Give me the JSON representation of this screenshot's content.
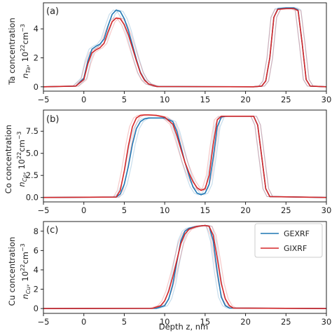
{
  "colors": {
    "GEXRF": "#1f77b4",
    "GIXRF": "#d62728"
  },
  "legend": {
    "placement": "top-right of panel (c)",
    "entries": [
      "GEXRF",
      "GIXRF"
    ]
  },
  "xlabel": "Depth  z, nm",
  "chart_data": [
    {
      "type": "line",
      "panel_label": "(a)",
      "ylabel_line1": "Ta concentration",
      "ylabel_line2": "n_Ta, 10^22 cm^-3",
      "xlim": [
        -5,
        30
      ],
      "ylim": [
        -0.3,
        5.8
      ],
      "xticks": [
        -5,
        0,
        5,
        10,
        15,
        20,
        25,
        30
      ],
      "yticks": [
        0,
        2,
        4
      ],
      "grid": false,
      "series": [
        {
          "name": "GEXRF",
          "x": [
            -5,
            -1,
            0,
            0.5,
            1,
            1.5,
            2,
            2.5,
            3,
            3.5,
            4,
            4.5,
            5,
            5.5,
            6,
            6.5,
            7,
            7.5,
            8,
            9,
            21,
            22,
            22.5,
            23,
            23.5,
            24,
            25,
            26,
            26.5,
            27,
            27.5,
            28,
            30
          ],
          "y": [
            0,
            0.05,
            0.6,
            1.8,
            2.6,
            2.8,
            2.95,
            3.3,
            4.2,
            5.0,
            5.3,
            5.2,
            4.7,
            3.9,
            2.9,
            1.9,
            1.0,
            0.5,
            0.2,
            0.02,
            0,
            0.05,
            0.4,
            2.0,
            4.8,
            5.4,
            5.45,
            5.45,
            5.3,
            3.0,
            0.5,
            0.05,
            0
          ]
        },
        {
          "name": "GIXRF",
          "x": [
            -5,
            -1,
            0,
            0.5,
            1,
            1.5,
            2,
            2.5,
            3,
            3.5,
            4,
            4.5,
            5,
            5.5,
            6,
            6.5,
            7,
            7.5,
            8,
            9,
            21,
            22,
            22.5,
            23,
            23.5,
            24,
            25,
            26,
            26.5,
            27,
            27.5,
            28,
            30
          ],
          "y": [
            0,
            0.05,
            0.5,
            1.6,
            2.35,
            2.55,
            2.7,
            3.0,
            3.8,
            4.5,
            4.75,
            4.7,
            4.3,
            3.6,
            2.7,
            1.8,
            0.95,
            0.45,
            0.2,
            0.02,
            0,
            0.05,
            0.4,
            2.0,
            4.8,
            5.35,
            5.4,
            5.4,
            5.25,
            3.0,
            0.5,
            0.05,
            0
          ]
        }
      ]
    },
    {
      "type": "line",
      "panel_label": "(b)",
      "ylabel_line1": "Co concentration",
      "ylabel_line2": "n_Co, 10^22 cm^-3",
      "xlim": [
        -5,
        30
      ],
      "ylim": [
        -0.5,
        9.9
      ],
      "xticks": [
        -5,
        0,
        5,
        10,
        15,
        20,
        25,
        30
      ],
      "yticks": [
        0.0,
        2.5,
        5.0,
        7.5
      ],
      "grid": false,
      "series": [
        {
          "name": "GEXRF",
          "x": [
            -5,
            4,
            4.5,
            5,
            5.5,
            6,
            6.5,
            7,
            7.5,
            8,
            9,
            10,
            11,
            11.5,
            12,
            12.5,
            13,
            13.5,
            14,
            14.5,
            15,
            15.5,
            16,
            16.5,
            17,
            17.5,
            18,
            20,
            21,
            21.5,
            22,
            22.5,
            23,
            30
          ],
          "y": [
            0,
            0.05,
            0.4,
            1.5,
            3.5,
            6.0,
            7.8,
            8.6,
            8.9,
            9.0,
            9.0,
            9.0,
            8.6,
            7.5,
            5.8,
            4.0,
            2.5,
            1.2,
            0.5,
            0.3,
            0.5,
            1.5,
            4.5,
            8.0,
            9.1,
            9.2,
            9.2,
            9.2,
            9.2,
            8.2,
            4.6,
            1.0,
            0.1,
            0
          ]
        },
        {
          "name": "GIXRF",
          "x": [
            -5,
            4,
            4.5,
            5,
            5.5,
            6,
            6.5,
            7,
            7.5,
            8,
            9,
            10,
            11,
            11.5,
            12,
            12.5,
            13,
            13.5,
            14,
            14.5,
            15,
            15.5,
            16,
            16.5,
            17,
            17.5,
            18,
            20,
            21,
            21.5,
            22,
            22.5,
            23,
            30
          ],
          "y": [
            0,
            0.05,
            0.8,
            3.0,
            5.8,
            8.0,
            9.0,
            9.3,
            9.35,
            9.35,
            9.3,
            9.1,
            8.3,
            7.0,
            5.5,
            4.0,
            2.8,
            1.8,
            1.1,
            0.8,
            1.0,
            2.5,
            6.0,
            8.8,
            9.2,
            9.2,
            9.2,
            9.2,
            9.2,
            8.2,
            4.6,
            1.0,
            0.1,
            0
          ]
        }
      ]
    },
    {
      "type": "line",
      "panel_label": "(c)",
      "ylabel_line1": "Cu concentration",
      "ylabel_line2": "n_Cu, 10^22 cm^-3",
      "xlim": [
        -5,
        30
      ],
      "ylim": [
        -0.5,
        9.0
      ],
      "xticks": [
        -5,
        0,
        5,
        10,
        15,
        20,
        25,
        30
      ],
      "yticks": [
        0,
        2,
        4,
        6,
        8
      ],
      "grid": false,
      "series": [
        {
          "name": "GEXRF",
          "x": [
            -5,
            9,
            10,
            10.5,
            11,
            11.5,
            12,
            12.5,
            13,
            14,
            15,
            15.5,
            16,
            16.5,
            17,
            17.5,
            18,
            30
          ],
          "y": [
            0,
            0.02,
            0.3,
            1.0,
            2.5,
            4.8,
            7.0,
            8.0,
            8.3,
            8.5,
            8.6,
            8.5,
            7.0,
            3.8,
            1.2,
            0.3,
            0.05,
            0
          ]
        },
        {
          "name": "GIXRF",
          "x": [
            -5,
            8.5,
            9.5,
            10,
            10.5,
            11,
            11.5,
            12,
            12.5,
            13,
            14,
            15,
            15.5,
            16,
            16.5,
            17,
            17.5,
            18,
            18.5,
            30
          ],
          "y": [
            0,
            0.02,
            0.3,
            0.8,
            1.8,
            3.3,
            5.0,
            6.7,
            7.7,
            8.2,
            8.5,
            8.6,
            8.5,
            7.6,
            5.2,
            2.6,
            1.0,
            0.3,
            0.05,
            0
          ]
        }
      ]
    }
  ]
}
